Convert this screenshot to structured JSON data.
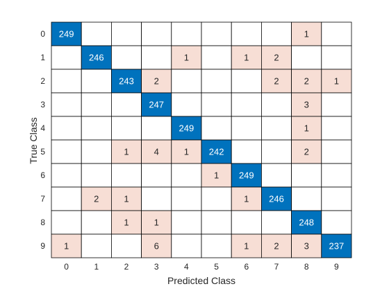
{
  "chart_data": {
    "type": "heatmap",
    "title": "",
    "xlabel": "Predicted Class",
    "ylabel": "True Class",
    "row_labels": [
      "0",
      "1",
      "2",
      "3",
      "4",
      "5",
      "6",
      "7",
      "8",
      "9"
    ],
    "col_labels": [
      "0",
      "1",
      "2",
      "3",
      "4",
      "5",
      "6",
      "7",
      "8",
      "9"
    ],
    "matrix": [
      [
        249,
        0,
        0,
        0,
        0,
        0,
        0,
        0,
        1,
        0
      ],
      [
        0,
        246,
        0,
        0,
        1,
        0,
        1,
        2,
        0,
        0
      ],
      [
        0,
        0,
        243,
        2,
        0,
        0,
        0,
        2,
        2,
        1
      ],
      [
        0,
        0,
        0,
        247,
        0,
        0,
        0,
        0,
        3,
        0
      ],
      [
        0,
        0,
        0,
        0,
        249,
        0,
        0,
        0,
        1,
        0
      ],
      [
        0,
        0,
        1,
        4,
        1,
        242,
        0,
        0,
        2,
        0
      ],
      [
        0,
        0,
        0,
        0,
        0,
        1,
        249,
        0,
        0,
        0
      ],
      [
        0,
        2,
        1,
        0,
        0,
        0,
        1,
        246,
        0,
        0
      ],
      [
        0,
        0,
        1,
        1,
        0,
        0,
        0,
        0,
        248,
        0
      ],
      [
        1,
        0,
        0,
        6,
        0,
        0,
        1,
        2,
        3,
        237
      ]
    ],
    "colors": {
      "correct": "#0072BD",
      "incorrect": "#F7DED5",
      "empty": "#FFFFFF",
      "grid": "#000000",
      "correct_text": "#FFFFFF",
      "incorrect_text": "#262626",
      "axis_text": "#262626"
    }
  }
}
